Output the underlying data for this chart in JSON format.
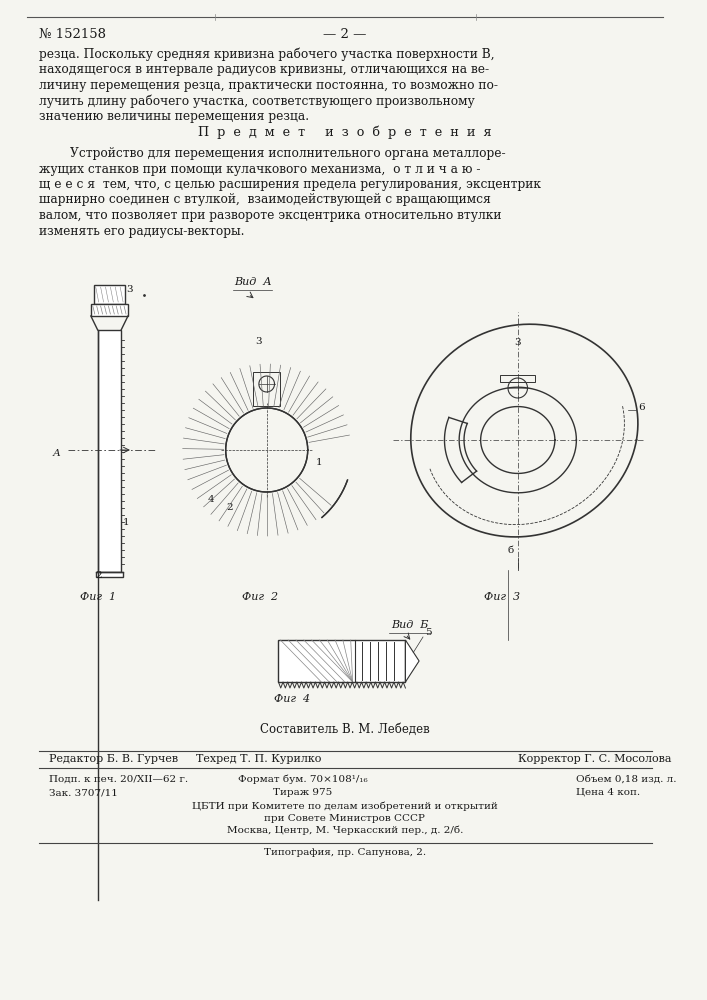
{
  "patent_number": "№ 152158",
  "page_number": "— 2 —",
  "background_color": "#f5f5f0",
  "text_color": "#1a1a1a",
  "paragraph1": "резца. Поскольку средняя кривизна рабочего участка поверхности В,",
  "paragraph1b": "находящегося в интервале радиусов кривизны, отличающихся на ве-",
  "paragraph1c": "личину перемещения резца, практически постоянна, то возможно по-",
  "paragraph1d": "лучить длину рабочего участка, соответствующего произвольному",
  "paragraph1e": "значению величины перемещения резца.",
  "header_predmet": "П  р  е  д  м  е  т     и  з  о  б  р  е  т  е  н  и  я",
  "paragraph2": "Устройство для перемещения исполнительного органа металлоре-",
  "paragraph2b": "жущих станков при помощи кулачкового механизма,  о т л и ч а ю -",
  "paragraph2c": "щ е е с я  тем, что, с целью расширения предела регулирования, эксцентрик",
  "paragraph2d": "шарнирно соединен с втулкой,  взаимодействующей с вращающимся",
  "paragraph2e": "валом, что позволяет при развороте эксцентрика относительно втулки",
  "paragraph2f": "изменять его радиусы-векторы.",
  "editor_line": "Редактор Б. В. Гурчев",
  "techred_line": "Техред Т. П. Курилко",
  "corrector_line": "Корректор Г. С. Мосолова",
  "podp_line": "Подп. к печ. 20/XII—62 г.",
  "zak_line": "Зак. 3707/11",
  "format_line": "Формат бум. 70×108¹/₁₆",
  "tirazh_line": "Тираж 975",
  "obem_line": "Объем 0,18 изд. л.",
  "cena_line": "Цена 4 коп.",
  "cbti_line1": "ЦБТИ при Комитете по делам изобретений и открытий",
  "cbti_line2": "при Совете Министров СССР",
  "cbti_line3": "Москва, Центр, М. Черкасский пер., д. 2/б.",
  "tipografia_line": "Типография, пр. Сапунова, 2.",
  "sostavitel_line": "Составитель В. М. Лебедев"
}
